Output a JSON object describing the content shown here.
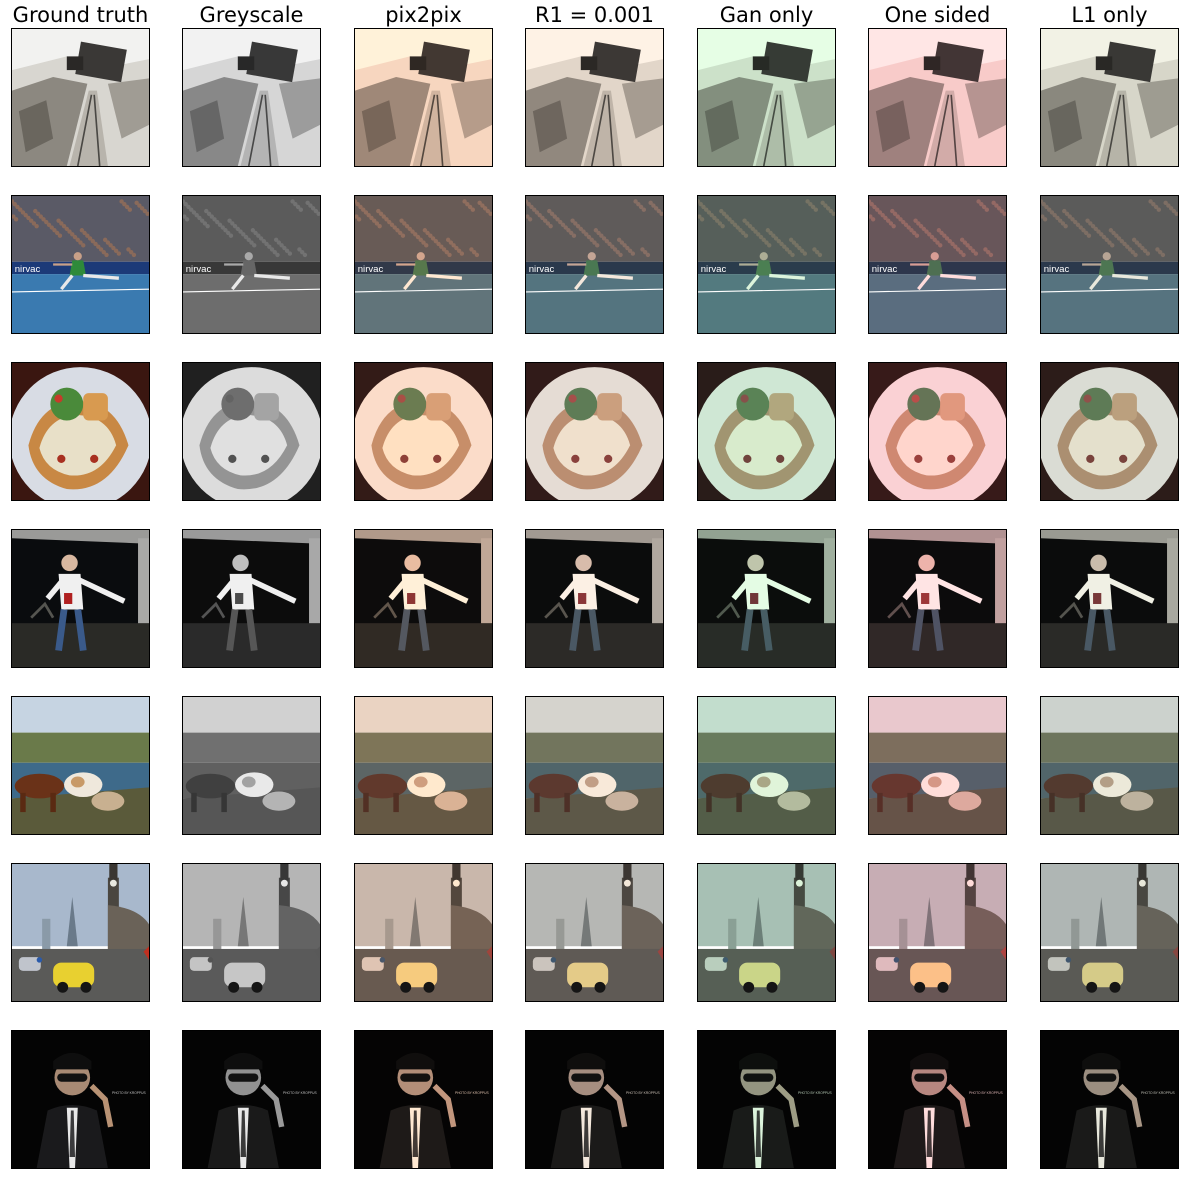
{
  "columns": [
    {
      "key": "gt",
      "label": "Ground truth"
    },
    {
      "key": "grey",
      "label": "Greyscale"
    },
    {
      "key": "p2p",
      "label": "pix2pix"
    },
    {
      "key": "r1",
      "label": "R1 = 0.001"
    },
    {
      "key": "gan",
      "label": "Gan only"
    },
    {
      "key": "one",
      "label": "One sided"
    },
    {
      "key": "l1",
      "label": "L1 only"
    }
  ],
  "rows": [
    {
      "scene": "train-wreck-on-railway-tracks",
      "embedded_text": ""
    },
    {
      "scene": "tennis-player-on-court-with-crowd",
      "embedded_text": "nirvac"
    },
    {
      "scene": "pizza-on-white-plate",
      "embedded_text": ""
    },
    {
      "scene": "man-posing-in-dark-garage",
      "embedded_text": ""
    },
    {
      "scene": "cows-grazing-by-river",
      "embedded_text": ""
    },
    {
      "scene": "city-street-with-clock-tower-and-cars",
      "embedded_text": ""
    },
    {
      "scene": "man-in-suit-with-sunglasses-on-black",
      "embedded_text": "PHOTO BY KROPPUS"
    }
  ],
  "variant_tints": {
    "gt": "#ffffff",
    "grey": "#808080",
    "p2p": "#c07040",
    "r1": "#9a7a5a",
    "gan": "#8a8a6a",
    "one": "#b05a30",
    "l1": "#8a8070"
  }
}
